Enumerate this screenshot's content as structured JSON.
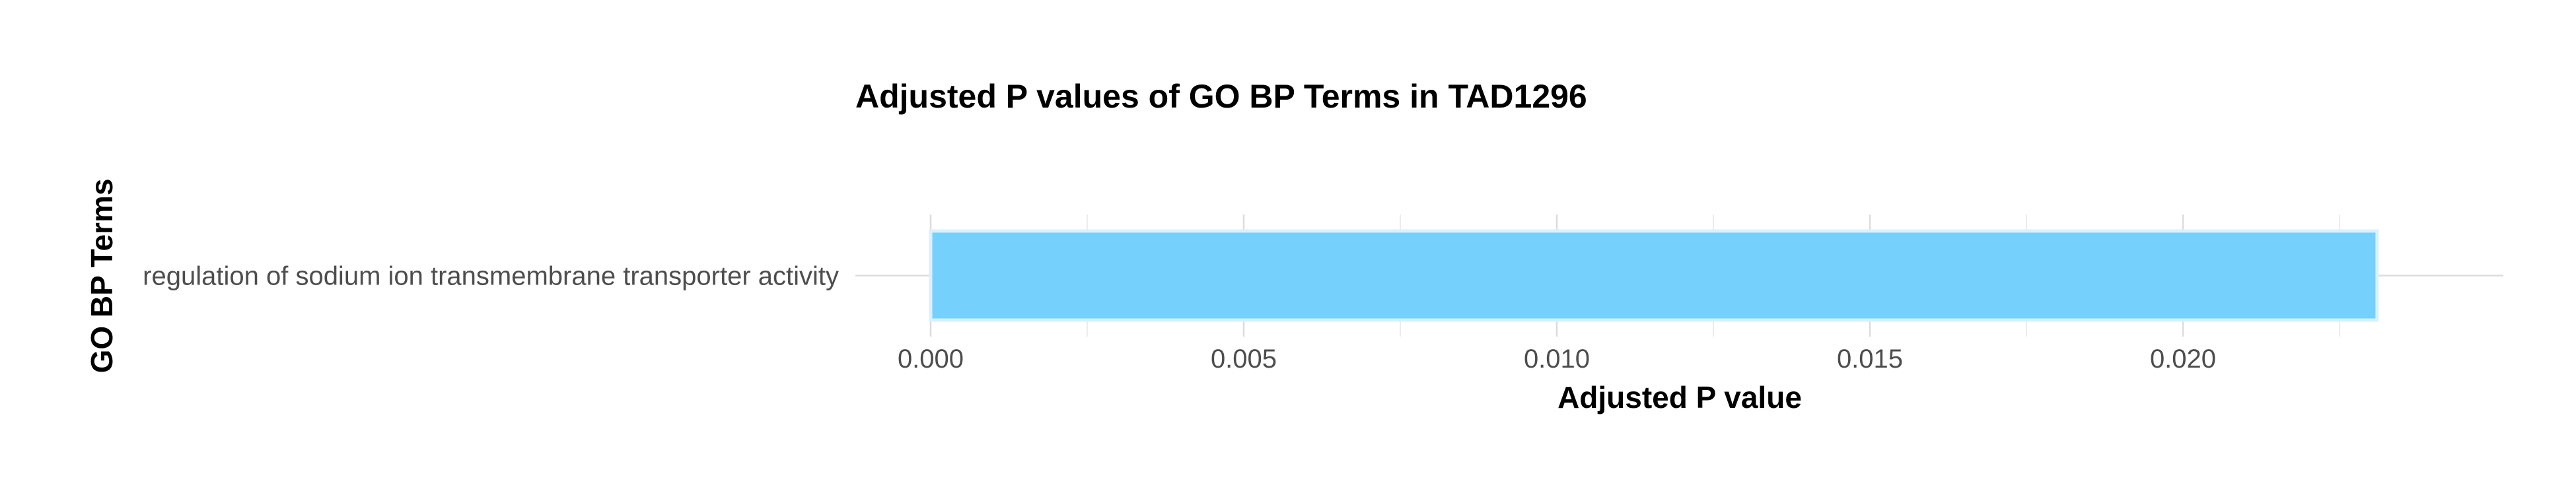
{
  "chart_data": {
    "type": "bar",
    "orientation": "horizontal",
    "title": "Adjusted P values of GO BP Terms in TAD1296",
    "xlabel": "Adjusted P value",
    "ylabel": "GO BP Terms",
    "categories": [
      "regulation of sodium ion transmembrane transporter activity"
    ],
    "values": [
      0.0231
    ],
    "xlim": [
      0,
      0.024
    ],
    "xticks": [
      0.0,
      0.005,
      0.01,
      0.015,
      0.02
    ],
    "xtick_labels": [
      "0.000",
      "0.005",
      "0.010",
      "0.015",
      "0.020"
    ],
    "grid": true,
    "colors": {
      "bar_fill": "#75d0fc",
      "bar_edge": "#d9f1fe",
      "grid_major": "#dcdcdc",
      "grid_minor": "#ececec"
    }
  }
}
